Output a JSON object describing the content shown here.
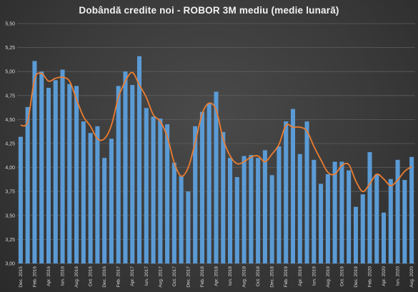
{
  "chart_data": {
    "type": "bar",
    "title": "Dobândă  credite noi - ROBOR 3M mediu (medie lunară)",
    "xlabel": "",
    "ylabel": "",
    "ylim": [
      3.0,
      5.5
    ],
    "yticks": [
      "3,00",
      "3,25",
      "3,50",
      "3,75",
      "4,00",
      "4,25",
      "4,50",
      "4,75",
      "5,00",
      "5,25",
      "5,50"
    ],
    "grid": true,
    "legend": "none",
    "colors": {
      "bar": "#5b9bd5",
      "line": "#ed7d31",
      "grid": "#5e5e5e",
      "text": "#d9d9d9"
    },
    "x_tick_labels": [
      "Dec. 2015",
      "Feb. 2016",
      "Apr. 2016",
      "Iun. 2016",
      "Aug. 2016",
      "Oct. 2016",
      "Dec. 2016",
      "Feb. 2017",
      "Apr. 2017",
      "Iun. 2017",
      "Aug. 2017",
      "Oct. 2017",
      "Dec. 2017",
      "Feb. 2018",
      "Apr. 2018",
      "Iun. 2018",
      "Aug. 2018",
      "Oct. 2018",
      "Dec. 2018",
      "Feb. 2019",
      "Apr. 2019",
      "Iun. 2019",
      "Aug. 2019",
      "Oct. 2019",
      "Dec. 2019",
      "Feb. 2020",
      "Apr. 2020",
      "Iun. 2020",
      "Aug. 2020"
    ],
    "series": [
      {
        "type": "bar",
        "values": [
          4.32,
          4.63,
          5.11,
          5.0,
          4.83,
          4.91,
          5.02,
          4.87,
          4.85,
          4.48,
          4.36,
          4.43,
          4.1,
          4.3,
          4.85,
          5.0,
          4.86,
          5.16,
          4.62,
          4.53,
          4.51,
          4.45,
          4.05,
          3.91,
          3.75,
          4.43,
          4.58,
          4.67,
          4.79,
          4.37,
          4.1,
          3.9,
          4.12,
          4.13,
          4.1,
          4.18,
          3.92,
          4.22,
          4.48,
          4.61,
          4.14,
          4.48,
          4.08,
          3.83,
          3.93,
          4.06,
          4.06,
          3.97,
          3.59,
          3.72,
          4.16,
          3.93,
          3.53,
          3.88,
          4.08,
          3.87,
          4.11
        ]
      },
      {
        "type": "line",
        "values": [
          4.44,
          4.48,
          4.92,
          4.98,
          4.9,
          4.93,
          4.94,
          4.9,
          4.71,
          4.53,
          4.43,
          4.3,
          4.3,
          4.44,
          4.73,
          4.9,
          4.99,
          4.86,
          4.73,
          4.55,
          4.48,
          4.32,
          4.05,
          3.91,
          4.0,
          4.26,
          4.56,
          4.67,
          4.6,
          4.3,
          4.12,
          4.04,
          4.06,
          4.11,
          4.12,
          4.06,
          4.14,
          4.24,
          4.44,
          4.42,
          4.42,
          4.38,
          4.22,
          4.08,
          3.95,
          3.93,
          4.02,
          4.03,
          3.86,
          3.75,
          3.83,
          3.93,
          3.88,
          3.81,
          3.87,
          3.96,
          4.01
        ]
      }
    ]
  }
}
